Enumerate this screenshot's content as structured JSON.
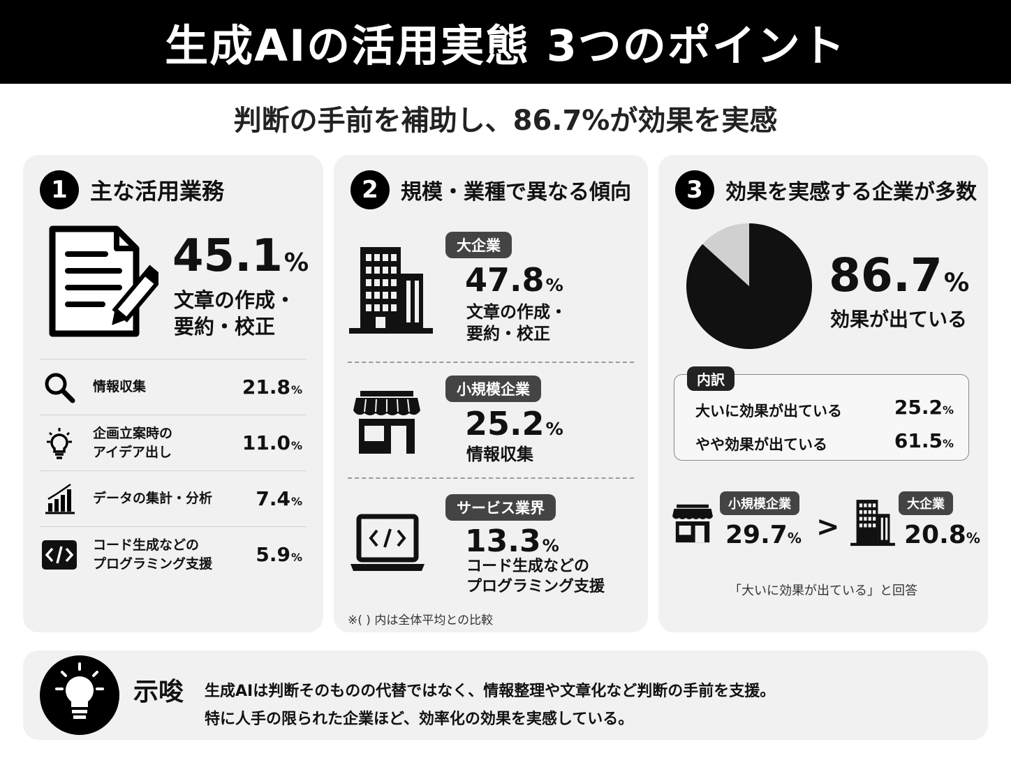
{
  "title": "生成AIの活用実態 3つのポイント",
  "subtitle": "判断の手前を補助し、86.7%が効果を実感",
  "panel1": {
    "num": "1",
    "title": "主な活用業務",
    "icon": "document-pen-icon",
    "top": {
      "value": "45.1",
      "unit": "%",
      "line1": "文章の作成・",
      "line2": "要約・校正"
    },
    "items": [
      {
        "icon": "search-icon",
        "line1": "情報収集",
        "line2": "",
        "value": "21.8",
        "unit": "%"
      },
      {
        "icon": "lightbulb-icon",
        "line1": "企画立案時の",
        "line2": "アイデア出し",
        "value": "11.0",
        "unit": "%"
      },
      {
        "icon": "bar-chart-icon",
        "line1": "データの集計・分析",
        "line2": "",
        "value": "7.4",
        "unit": "%"
      },
      {
        "icon": "code-icon",
        "line1": "コード生成などの",
        "line2": "プログラミング支援",
        "value": "5.9",
        "unit": "%"
      }
    ]
  },
  "panel2": {
    "num": "2",
    "title": "規模・業種で異なる傾向",
    "segments": [
      {
        "icon": "office-building-icon",
        "tag": "大企業",
        "value": "47.8",
        "unit": "%",
        "line1": "文章の作成・",
        "line2": "要約・校正"
      },
      {
        "icon": "storefront-icon",
        "tag": "小規模企業",
        "value": "25.2",
        "unit": "%",
        "line1": "情報収集",
        "line2": ""
      },
      {
        "icon": "laptop-code-icon",
        "tag": "サービス業界",
        "value": "13.3",
        "unit": "%",
        "line1": "コード生成などの",
        "line2": "プログラミング支援"
      }
    ],
    "note": "※( ) 内は全体平均との比較"
  },
  "panel3": {
    "num": "3",
    "title": "効果を実感する企業が多数",
    "headline": {
      "value": "86.7",
      "unit": "%",
      "label": "効果が出ている"
    },
    "breakdown": {
      "tag": "内訳",
      "rows": [
        {
          "label": "大いに効果が出ている",
          "value": "25.2",
          "unit": "%"
        },
        {
          "label": "やや効果が出ている",
          "value": "61.5",
          "unit": "%"
        }
      ]
    },
    "comparison": {
      "left": {
        "icon": "storefront-icon",
        "tag": "小規模企業",
        "value": "29.7",
        "unit": "%"
      },
      "symbol": ">",
      "right": {
        "icon": "office-building-icon",
        "tag": "大企業",
        "value": "20.8",
        "unit": "%"
      },
      "note": "「大いに効果が出ている」と回答"
    }
  },
  "implication": {
    "icon": "lightbulb-icon",
    "title": "示唆",
    "line1": "生成AIは判断そのものの代替ではなく、情報整理や文章化など判断の手前を支援。",
    "line2": "特に人手の限られた企業ほど、効率化の効果を実感している。"
  },
  "chart_data": {
    "type": "pie",
    "categories": [
      "効果が出ている",
      ""
    ],
    "values": [
      86.7,
      13.3
    ],
    "colors": [
      "#111111",
      "#d0d0d0"
    ]
  }
}
